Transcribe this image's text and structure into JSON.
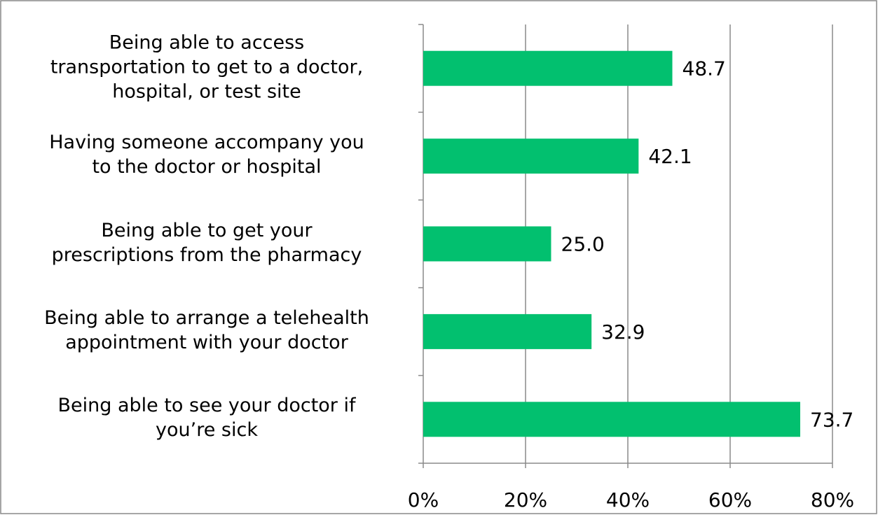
{
  "chart_data": {
    "type": "bar",
    "orientation": "horizontal",
    "categories": [
      "Being able to access\ntransportation to get to a doctor,\nhospital, or test site",
      "Having someone accompany you\nto the doctor or hospital",
      "Being able to get your\nprescriptions from the pharmacy",
      "Being able to arrange a telehealth\nappointment with your doctor",
      "Being able to see your doctor if\nyou’re sick"
    ],
    "values": [
      48.7,
      42.1,
      25.0,
      32.9,
      73.7
    ],
    "value_labels": [
      "48.7",
      "42.1",
      "25.0",
      "32.9",
      "73.7"
    ],
    "color": "#02c06f",
    "xlim": [
      0,
      80
    ],
    "xticks": [
      {
        "value": 0,
        "label": "0%"
      },
      {
        "value": 20,
        "label": "20%"
      },
      {
        "value": 40,
        "label": "40%"
      },
      {
        "value": 60,
        "label": "60%"
      },
      {
        "value": 80,
        "label": "80%"
      }
    ],
    "grid": true
  }
}
